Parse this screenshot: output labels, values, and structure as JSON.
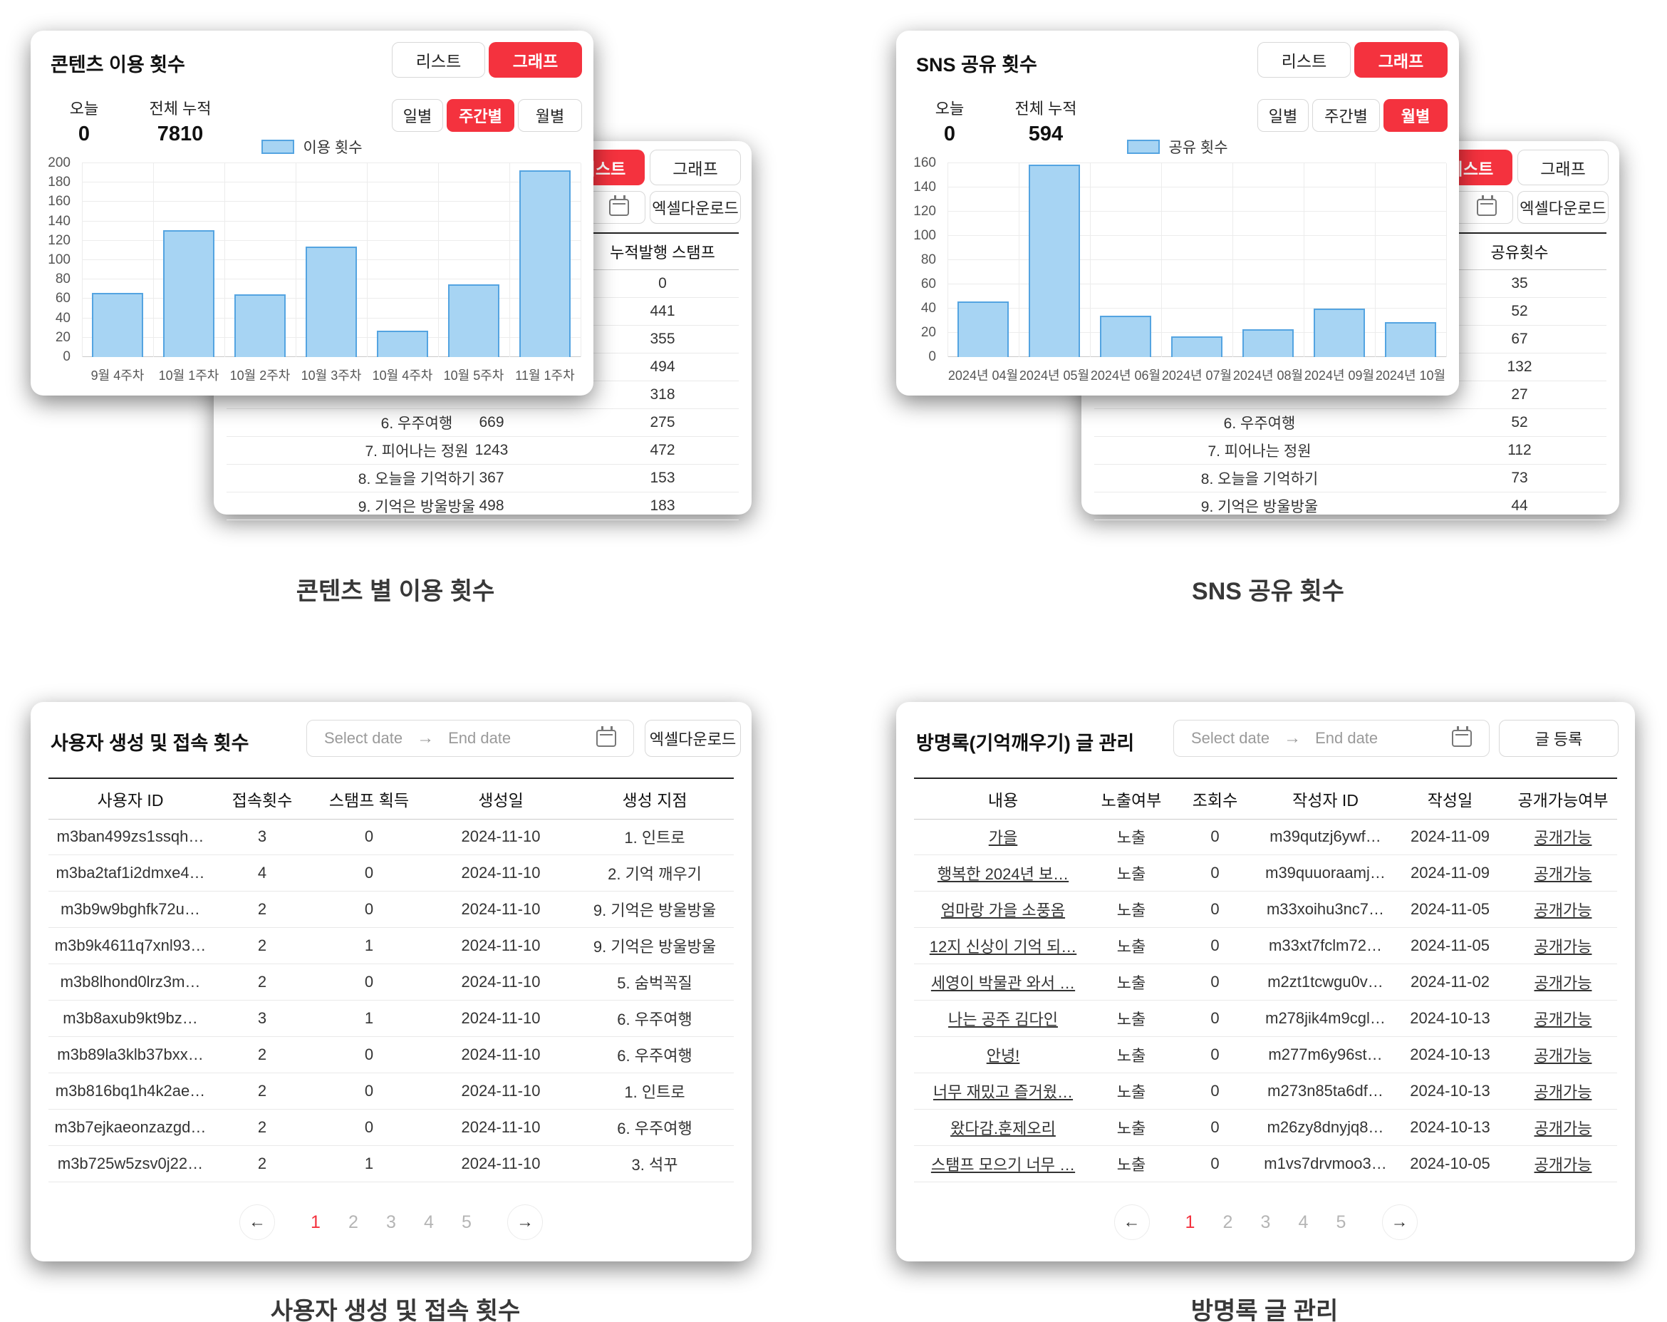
{
  "colors": {
    "accent_red": "#f4323e",
    "bar_fill": "#a7d4f3",
    "bar_border": "#54a4e1"
  },
  "charts": {
    "usage": {
      "title": "콘텐츠 이용 횟수",
      "today_label": "오늘",
      "today_value": "0",
      "total_label": "전체 누적",
      "total_value": "7810",
      "list_btn": "리스트",
      "graph_btn": "그래프",
      "tabs": [
        {
          "label": "일별",
          "active": false
        },
        {
          "label": "주간별",
          "active": true
        },
        {
          "label": "월별",
          "active": false
        }
      ],
      "legend": "이용 횟수"
    },
    "sns": {
      "title": "SNS 공유 횟수",
      "today_label": "오늘",
      "today_value": "0",
      "total_label": "전체 누적",
      "total_value": "594",
      "list_btn": "리스트",
      "graph_btn": "그래프",
      "tabs": [
        {
          "label": "일별",
          "active": false
        },
        {
          "label": "주간별",
          "active": false
        },
        {
          "label": "월별",
          "active": true
        }
      ],
      "legend": "공유 횟수"
    }
  },
  "chart_data": [
    {
      "type": "bar",
      "title": "콘텐츠 이용 횟수 (주간별)",
      "categories": [
        "9월 4주차",
        "10월 1주차",
        "10월 2주차",
        "10월 3주차",
        "10월 4주차",
        "10월 5주차",
        "11월 1주차"
      ],
      "values": [
        66,
        131,
        65,
        114,
        27,
        75,
        193
      ],
      "xlabel": "",
      "ylabel": "",
      "ylim": [
        0,
        200
      ],
      "ytick": 20,
      "grid": true,
      "legend": "이용 횟수",
      "legend_position": "top"
    },
    {
      "type": "bar",
      "title": "SNS 공유 횟수 (월별)",
      "categories": [
        "2024년 04월",
        "2024년 05월",
        "2024년 06월",
        "2024년 07월",
        "2024년 08월",
        "2024년 09월",
        "2024년 10월"
      ],
      "values": [
        46,
        159,
        34,
        17,
        23,
        40,
        29
      ],
      "xlabel": "",
      "ylabel": "",
      "ylim": [
        0,
        160
      ],
      "ytick": 20,
      "grid": true,
      "legend": "공유 횟수",
      "legend_position": "top"
    }
  ],
  "bg_lists": {
    "usage": {
      "list_btn": "리스트",
      "graph_btn": "그래프",
      "excel_btn": "엑셀다운로드",
      "header": "누적발행 스탬프",
      "rows": [
        {
          "name": null,
          "mid": null,
          "val": "0"
        },
        {
          "name": null,
          "mid": null,
          "val": "441"
        },
        {
          "name": null,
          "mid": null,
          "val": "355"
        },
        {
          "name": null,
          "mid": null,
          "val": "494"
        },
        {
          "name": null,
          "mid": null,
          "val": "318"
        },
        {
          "name": "6. 우주여행",
          "mid": "669",
          "val": "275"
        },
        {
          "name": "7. 피어나는 정원",
          "mid": "1243",
          "val": "472"
        },
        {
          "name": "8. 오늘을 기억하기",
          "mid": "367",
          "val": "153"
        },
        {
          "name": "9. 기억은 방울방울",
          "mid": "498",
          "val": "183"
        }
      ]
    },
    "sns": {
      "list_btn": "리스트",
      "graph_btn": "그래프",
      "excel_btn": "엑셀다운로드",
      "header": "공유횟수",
      "rows": [
        {
          "name": null,
          "val": "35"
        },
        {
          "name": null,
          "val": "52"
        },
        {
          "name": null,
          "val": "67"
        },
        {
          "name": null,
          "val": "132"
        },
        {
          "name": null,
          "val": "27"
        },
        {
          "name": "6. 우주여행",
          "val": "52"
        },
        {
          "name": "7. 피어나는 정원",
          "val": "112"
        },
        {
          "name": "8. 오늘을 기억하기",
          "val": "73"
        },
        {
          "name": "9. 기억은 방울방울",
          "val": "44"
        }
      ]
    }
  },
  "user_table": {
    "title": "사용자 생성 및 접속 횟수",
    "date_start_placeholder": "Select date",
    "date_arrow": "→",
    "date_end_placeholder": "End date",
    "excel_btn": "엑셀다운로드",
    "columns": [
      "사용자 ID",
      "접속횟수",
      "스탬프 획득",
      "생성일",
      "생성 지점"
    ],
    "rows": [
      [
        "m3ban499zs1ssqh…",
        "3",
        "0",
        "2024-11-10",
        "1. 인트로"
      ],
      [
        "m3ba2taf1i2dmxe4…",
        "4",
        "0",
        "2024-11-10",
        "2. 기억 깨우기"
      ],
      [
        "m3b9w9bghfk72u…",
        "2",
        "0",
        "2024-11-10",
        "9. 기억은 방울방울"
      ],
      [
        "m3b9k4611q7xnl93…",
        "2",
        "1",
        "2024-11-10",
        "9. 기억은 방울방울"
      ],
      [
        "m3b8lhond0lrz3m…",
        "2",
        "0",
        "2024-11-10",
        "5. 숨벅꼭질"
      ],
      [
        "m3b8axub9kt9bz…",
        "3",
        "1",
        "2024-11-10",
        "6. 우주여행"
      ],
      [
        "m3b89la3klb37bxx…",
        "2",
        "0",
        "2024-11-10",
        "6. 우주여행"
      ],
      [
        "m3b816bq1h4k2ae…",
        "2",
        "0",
        "2024-11-10",
        "1. 인트로"
      ],
      [
        "m3b7ejkaeonzazgd…",
        "2",
        "0",
        "2024-11-10",
        "6. 우주여행"
      ],
      [
        "m3b725w5zsv0j22…",
        "2",
        "1",
        "2024-11-10",
        "3. 석꾸"
      ]
    ],
    "pagination": {
      "prev": "←",
      "pages": [
        "1",
        "2",
        "3",
        "4",
        "5"
      ],
      "active": "1",
      "next": "→"
    }
  },
  "guestbook_table": {
    "title": "방명록(기억깨우기) 글 관리",
    "date_start_placeholder": "Select date",
    "date_arrow": "→",
    "date_end_placeholder": "End date",
    "register_btn": "글 등록",
    "columns": [
      "내용",
      "노출여부",
      "조회수",
      "작성자 ID",
      "작성일",
      "공개가능여부"
    ],
    "rows": [
      [
        "가을",
        "노출",
        "0",
        "m39qutzj6ywf…",
        "2024-11-09",
        "공개가능"
      ],
      [
        "행복한 2024년 보…",
        "노출",
        "0",
        "m39quuoraamj…",
        "2024-11-09",
        "공개가능"
      ],
      [
        "엄마랑 가을 소풍옴",
        "노출",
        "0",
        "m33xoihu3nc7…",
        "2024-11-05",
        "공개가능"
      ],
      [
        "12지 신상이 기억 되…",
        "노출",
        "0",
        "m33xt7fclm72…",
        "2024-11-05",
        "공개가능"
      ],
      [
        "세영이 박물관 와서 …",
        "노출",
        "0",
        "m2zt1tcwgu0v…",
        "2024-11-02",
        "공개가능"
      ],
      [
        "나는 공주 김다인",
        "노출",
        "0",
        "m278jik4m9cgl…",
        "2024-10-13",
        "공개가능"
      ],
      [
        "안녕!",
        "노출",
        "0",
        "m277m6y96st…",
        "2024-10-13",
        "공개가능"
      ],
      [
        "너무 재밌고 즐거웠…",
        "노출",
        "0",
        "m273n85ta6df…",
        "2024-10-13",
        "공개가능"
      ],
      [
        "왔다감.훈제오리",
        "노출",
        "0",
        "m26zy8dnyjq8…",
        "2024-10-13",
        "공개가능"
      ],
      [
        "스탬프 모으기 너무 …",
        "노출",
        "0",
        "m1vs7drvmoo3…",
        "2024-10-05",
        "공개가능"
      ]
    ],
    "pagination": {
      "prev": "←",
      "pages": [
        "1",
        "2",
        "3",
        "4",
        "5"
      ],
      "active": "1",
      "next": "→"
    }
  },
  "captions": {
    "usage": "콘텐츠 별 이용 횟수",
    "sns": "SNS 공유 횟수",
    "user": "사용자 생성 및 접속 횟수",
    "guestbook": "방명록 글 관리"
  }
}
